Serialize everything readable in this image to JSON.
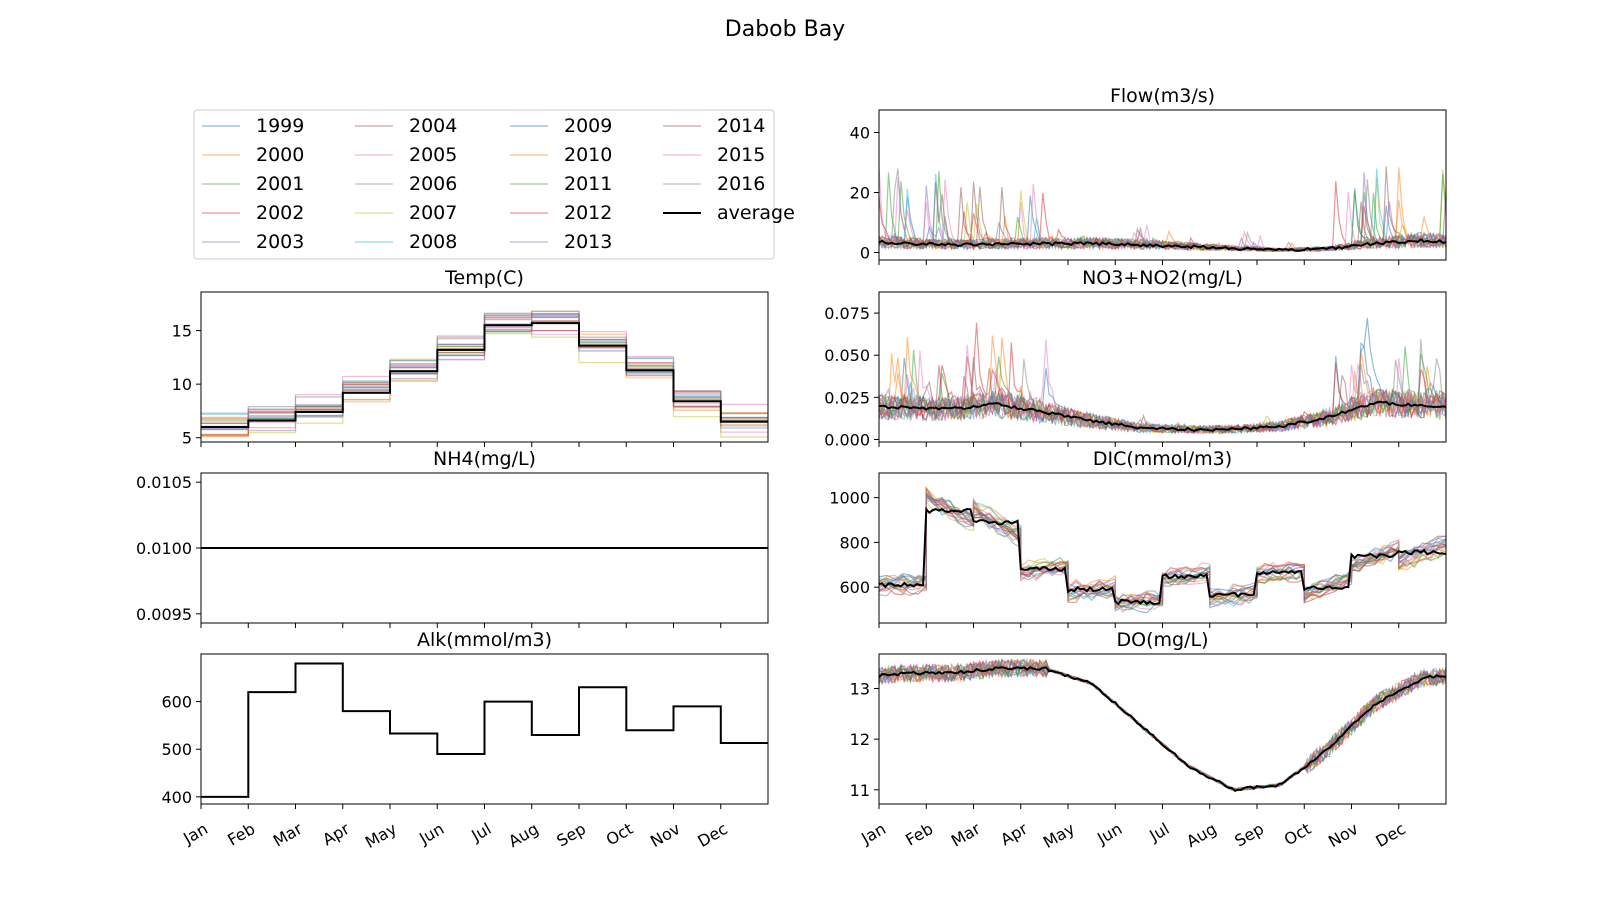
{
  "figure": {
    "title": "Dabob Bay"
  },
  "months": [
    "Jan",
    "Feb",
    "Mar",
    "Apr",
    "May",
    "Jun",
    "Jul",
    "Aug",
    "Sep",
    "Oct",
    "Nov",
    "Dec"
  ],
  "legend": {
    "entries": [
      {
        "label": "1999",
        "color": "#1f77b4"
      },
      {
        "label": "2000",
        "color": "#ff7f0e"
      },
      {
        "label": "2001",
        "color": "#2ca02c"
      },
      {
        "label": "2002",
        "color": "#d62728"
      },
      {
        "label": "2003",
        "color": "#9467bd"
      },
      {
        "label": "2004",
        "color": "#8c564b"
      },
      {
        "label": "2005",
        "color": "#e377c2"
      },
      {
        "label": "2006",
        "color": "#7f7f7f"
      },
      {
        "label": "2007",
        "color": "#bcbd22"
      },
      {
        "label": "2008",
        "color": "#17becf"
      },
      {
        "label": "2009",
        "color": "#1f77b4"
      },
      {
        "label": "2010",
        "color": "#ff7f0e"
      },
      {
        "label": "2011",
        "color": "#2ca02c"
      },
      {
        "label": "2012",
        "color": "#d62728"
      },
      {
        "label": "2013",
        "color": "#9467bd"
      },
      {
        "label": "2014",
        "color": "#8c564b"
      },
      {
        "label": "2015",
        "color": "#e377c2"
      },
      {
        "label": "2016",
        "color": "#7f7f7f"
      },
      {
        "label": "average",
        "color": "#000000"
      }
    ]
  },
  "chart_data": [
    {
      "type": "line",
      "title": "Temp(C)",
      "ylim": [
        4.6,
        18.6
      ],
      "yticks": [
        5,
        10,
        15
      ],
      "average_monthly": [
        6.0,
        6.6,
        7.4,
        9.2,
        11.2,
        13.2,
        15.5,
        15.7,
        13.6,
        11.3,
        8.4,
        6.5
      ]
    },
    {
      "type": "line",
      "title": "NH4(mg/L)",
      "ylim": [
        0.00943,
        0.01057
      ],
      "yticks": [
        0.0095,
        0.01,
        0.0105
      ],
      "yticklabels": [
        "0.0095",
        "0.0100",
        "0.0105"
      ],
      "average_monthly": [
        0.01,
        0.01,
        0.01,
        0.01,
        0.01,
        0.01,
        0.01,
        0.01,
        0.01,
        0.01,
        0.01,
        0.01
      ]
    },
    {
      "type": "line",
      "title": "Alk(mmol/m3)",
      "ylim": [
        385,
        700
      ],
      "yticks": [
        400,
        500,
        600
      ],
      "average_monthly": [
        400,
        620,
        680,
        580,
        533,
        490,
        600,
        530,
        630,
        540,
        590,
        513
      ]
    },
    {
      "type": "line",
      "title": "Flow(m3/s)",
      "ylim": [
        -2.5,
        47.5
      ],
      "yticks": [
        0,
        20,
        40
      ],
      "average_monthly": [
        3.0,
        2.5,
        2.8,
        2.9,
        3.0,
        2.6,
        2.0,
        1.4,
        0.8,
        1.2,
        3.0,
        4.0
      ]
    },
    {
      "type": "line",
      "title": "NO3+NO2(mg/L)",
      "ylim": [
        -0.0015,
        0.0875
      ],
      "yticks": [
        0.0,
        0.025,
        0.05,
        0.075
      ],
      "yticklabels": [
        "0.000",
        "0.025",
        "0.050",
        "0.075"
      ],
      "average_monthly": [
        0.019,
        0.018,
        0.021,
        0.016,
        0.011,
        0.007,
        0.006,
        0.006,
        0.008,
        0.013,
        0.022,
        0.02
      ]
    },
    {
      "type": "line",
      "title": "DIC(mmol/m3)",
      "ylim": [
        440,
        1110
      ],
      "yticks": [
        600,
        800,
        1000
      ],
      "average_monthly": [
        610,
        940,
        890,
        680,
        590,
        535,
        650,
        565,
        665,
        595,
        740,
        755
      ]
    },
    {
      "type": "line",
      "title": "DO(mg/L)",
      "ylim": [
        10.72,
        13.68
      ],
      "yticks": [
        11,
        12,
        13
      ],
      "average_monthly": [
        13.3,
        13.3,
        13.4,
        13.4,
        13.1,
        12.3,
        11.5,
        11.0,
        11.1,
        11.8,
        12.7,
        13.2
      ]
    }
  ]
}
